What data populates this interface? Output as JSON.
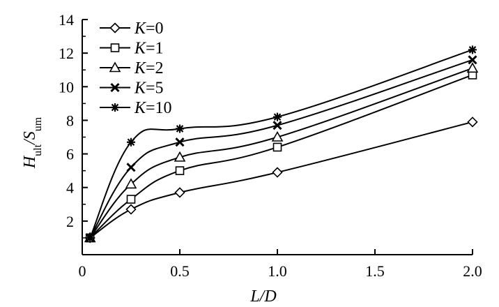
{
  "chart_data": {
    "type": "line",
    "xlabel": "L/D",
    "ylabel": {
      "main1": "H",
      "sub1": "ult",
      "sep": "/",
      "main2": "S",
      "sub2": "um"
    },
    "xlim": [
      0,
      2.0
    ],
    "ylim": [
      0,
      14
    ],
    "x_ticks": [
      0,
      0.5,
      1.0,
      1.5,
      2.0
    ],
    "x_tick_labels": [
      "0",
      "0.5",
      "1.0",
      "1.5",
      "2.0"
    ],
    "y_ticks": [
      2,
      4,
      6,
      8,
      10,
      12,
      14
    ],
    "y_tick_labels": [
      "2",
      "4",
      "6",
      "8",
      "10",
      "12",
      "14"
    ],
    "grid": false,
    "legend_position": "top-left",
    "series": [
      {
        "name": "K=0",
        "label_var": "K",
        "label_val": "=0",
        "marker": "diamond",
        "x": [
          0.04,
          0.25,
          0.5,
          1.0,
          2.0
        ],
        "y": [
          1.0,
          2.7,
          3.7,
          4.9,
          7.9
        ]
      },
      {
        "name": "K=1",
        "label_var": "K",
        "label_val": "=1",
        "marker": "square",
        "x": [
          0.04,
          0.25,
          0.5,
          1.0,
          2.0
        ],
        "y": [
          1.0,
          3.3,
          5.0,
          6.4,
          10.7
        ]
      },
      {
        "name": "K=2",
        "label_var": "K",
        "label_val": "=2",
        "marker": "triangle",
        "x": [
          0.04,
          0.25,
          0.5,
          1.0,
          2.0
        ],
        "y": [
          1.0,
          4.2,
          5.8,
          7.0,
          11.1
        ]
      },
      {
        "name": "K=5",
        "label_var": "K",
        "label_val": "=5",
        "marker": "x",
        "x": [
          0.04,
          0.25,
          0.5,
          1.0,
          2.0
        ],
        "y": [
          1.0,
          5.2,
          6.7,
          7.7,
          11.6
        ]
      },
      {
        "name": "K=10",
        "label_var": "K",
        "label_val": "=10",
        "marker": "asterisk",
        "x": [
          0.04,
          0.25,
          0.5,
          1.0,
          2.0
        ],
        "y": [
          1.0,
          6.7,
          7.5,
          8.2,
          12.2
        ]
      }
    ]
  }
}
